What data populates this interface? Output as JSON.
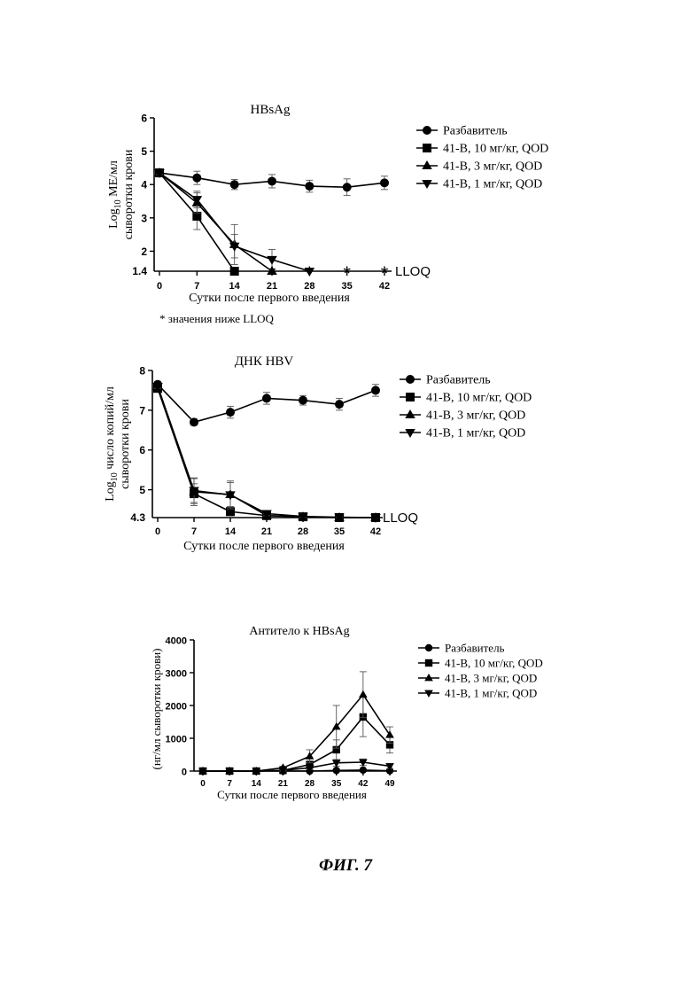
{
  "figure_label": "ФИГ. 7",
  "chart_data": [
    {
      "type": "line",
      "title": "HBsAg",
      "ylabel_line1": "Log",
      "ylabel_sub": "10",
      "ylabel_line1_rest": " МЕ/мл",
      "ylabel_line2": "сыворотки крови",
      "xlabel": "Сутки после первого введения",
      "x": [
        0,
        7,
        14,
        21,
        28,
        35,
        42
      ],
      "x_tick_labels": [
        "0",
        "7",
        "14",
        "21",
        "28",
        "35",
        "42"
      ],
      "y_ticks": [
        2,
        3,
        4,
        5,
        6
      ],
      "y_tick_labels": [
        "2",
        "3",
        "4",
        "5",
        "6"
      ],
      "ylim": [
        1.4,
        6
      ],
      "ybase_label": "1.4",
      "lloq_label": "LLOQ",
      "footnote": "* значения ниже LLOQ",
      "below_lloq_marker": "*",
      "below_lloq_x": [
        21,
        28,
        35,
        42
      ],
      "series": [
        {
          "name": "Разбавитель",
          "marker": "circle",
          "values": [
            4.35,
            4.2,
            4.0,
            4.1,
            3.95,
            3.92,
            4.05
          ],
          "errors": [
            0.05,
            0.2,
            0.15,
            0.2,
            0.18,
            0.25,
            0.2
          ]
        },
        {
          "name": "41-B, 10 мг/кг, QOD",
          "marker": "square",
          "values": [
            4.35,
            3.05,
            1.4,
            null,
            null,
            null,
            null
          ],
          "errors": [
            0.05,
            0.4,
            0,
            0,
            0,
            0,
            0
          ]
        },
        {
          "name": "41-B, 3 мг/кг, QOD",
          "marker": "triangle-up",
          "values": [
            4.35,
            3.45,
            2.2,
            1.4,
            null,
            null,
            null
          ],
          "errors": [
            0.05,
            0.3,
            0.6,
            0,
            0,
            0,
            0
          ]
        },
        {
          "name": "41-B, 1 мг/кг, QOD",
          "marker": "triangle-down",
          "values": [
            4.35,
            3.55,
            2.15,
            1.75,
            1.4,
            null,
            null
          ],
          "errors": [
            0.05,
            0.25,
            0.35,
            0.3,
            0,
            0,
            0
          ]
        }
      ]
    },
    {
      "type": "line",
      "title": "ДНК HBV",
      "ylabel_line1": "Log",
      "ylabel_sub": "10",
      "ylabel_line1_rest": " число копий/мл",
      "ylabel_line2": "сыворотки крови",
      "xlabel": "Сутки после первого введения",
      "x": [
        0,
        7,
        14,
        21,
        28,
        35,
        42
      ],
      "x_tick_labels": [
        "0",
        "7",
        "14",
        "21",
        "28",
        "35",
        "42"
      ],
      "y_ticks": [
        5,
        6,
        7,
        8
      ],
      "y_tick_labels": [
        "5",
        "6",
        "7",
        "8"
      ],
      "ylim": [
        4.3,
        8
      ],
      "ybase_label": "4.3",
      "lloq_label": "LLOQ",
      "series": [
        {
          "name": "Разбавитель",
          "marker": "circle",
          "values": [
            7.65,
            6.7,
            6.95,
            7.3,
            7.25,
            7.15,
            7.5
          ],
          "errors": [
            0.05,
            0.08,
            0.15,
            0.15,
            0.12,
            0.15,
            0.15
          ]
        },
        {
          "name": "41-B, 10 мг/кг, QOD",
          "marker": "square",
          "values": [
            7.55,
            4.9,
            4.45,
            4.35,
            4.32,
            4.3,
            4.3
          ],
          "errors": [
            0.05,
            0.25,
            0.1,
            0.05,
            0.03,
            0.02,
            0
          ]
        },
        {
          "name": "41-B, 3 мг/кг, QOD",
          "marker": "triangle-up",
          "values": [
            7.6,
            4.95,
            4.88,
            4.35,
            4.32,
            4.3,
            4.3
          ],
          "errors": [
            0.05,
            0.35,
            0.3,
            0.05,
            0.03,
            0.02,
            0
          ]
        },
        {
          "name": "41-B, 1 мг/кг, QOD",
          "marker": "triangle-down",
          "values": [
            7.6,
            4.98,
            4.87,
            4.4,
            4.33,
            4.31,
            4.3
          ],
          "errors": [
            0.05,
            0.3,
            0.35,
            0.05,
            0.03,
            0.02,
            0
          ]
        }
      ]
    },
    {
      "type": "line",
      "title": "Антитело к HBsAg",
      "ylabel": "(нг/мл сыворотки крови)",
      "xlabel": "Сутки после первого введения",
      "x": [
        0,
        7,
        14,
        21,
        28,
        35,
        42,
        49
      ],
      "x_tick_labels": [
        "0",
        "7",
        "14",
        "21",
        "28",
        "35",
        "42",
        "49"
      ],
      "y_ticks": [
        0,
        1000,
        2000,
        3000,
        4000
      ],
      "y_tick_labels": [
        "0",
        "1000",
        "2000",
        "3000",
        "4000"
      ],
      "ylim": [
        0,
        4000
      ],
      "series": [
        {
          "name": "Разбавитель",
          "marker": "circle",
          "values": [
            0,
            0,
            0,
            0,
            0,
            20,
            30,
            10
          ],
          "errors": [
            0,
            0,
            0,
            0,
            0,
            20,
            20,
            10
          ]
        },
        {
          "name": "41-B, 10 мг/кг, QOD",
          "marker": "square",
          "values": [
            0,
            0,
            0,
            20,
            200,
            650,
            1650,
            800
          ],
          "errors": [
            0,
            0,
            0,
            20,
            100,
            300,
            600,
            250
          ]
        },
        {
          "name": "41-B, 3 мг/кг, QOD",
          "marker": "triangle-up",
          "values": [
            0,
            0,
            0,
            100,
            450,
            1350,
            2330,
            1100
          ],
          "errors": [
            0,
            0,
            0,
            50,
            200,
            650,
            700,
            250
          ]
        },
        {
          "name": "41-B, 1 мг/кг, QOD",
          "marker": "triangle-down",
          "values": [
            0,
            0,
            0,
            20,
            100,
            250,
            270,
            150
          ],
          "errors": [
            0,
            0,
            0,
            20,
            50,
            100,
            100,
            80
          ]
        }
      ]
    }
  ]
}
